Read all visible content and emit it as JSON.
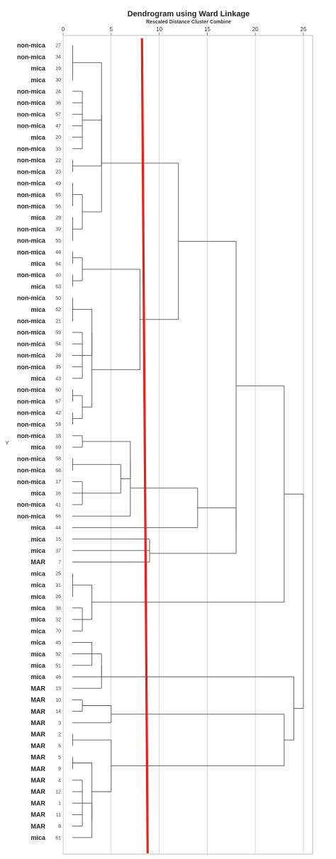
{
  "chart_data": {
    "type": "dendrogram",
    "title": "Dendrogram using Ward Linkage",
    "subtitle": "Rescaled Distance Cluster Combine",
    "ylabel": "Y",
    "xlim": [
      0,
      25
    ],
    "x_ticks": [
      0,
      5,
      10,
      15,
      20,
      25
    ],
    "cut_line": {
      "value": 8.5,
      "color": "#e8211d"
    },
    "leaves": [
      {
        "label": "non-mica",
        "id": "27"
      },
      {
        "label": "non-mica",
        "id": "34"
      },
      {
        "label": "mica",
        "id": "19"
      },
      {
        "label": "mica",
        "id": "30"
      },
      {
        "label": "non-mica",
        "id": "24"
      },
      {
        "label": "non-mica",
        "id": "36"
      },
      {
        "label": "non-mica",
        "id": "57"
      },
      {
        "label": "non-mica",
        "id": "47"
      },
      {
        "label": "mica",
        "id": "20"
      },
      {
        "label": "non-mica",
        "id": "33"
      },
      {
        "label": "non-mica",
        "id": "22"
      },
      {
        "label": "non-mica",
        "id": "23"
      },
      {
        "label": "non-mica",
        "id": "49"
      },
      {
        "label": "non-mica",
        "id": "65"
      },
      {
        "label": "non-mica",
        "id": "56"
      },
      {
        "label": "mica",
        "id": "29"
      },
      {
        "label": "non-mica",
        "id": "39"
      },
      {
        "label": "non-mica",
        "id": "55"
      },
      {
        "label": "non-mica",
        "id": "48"
      },
      {
        "label": "mica",
        "id": "64"
      },
      {
        "label": "non-mica",
        "id": "40"
      },
      {
        "label": "mica",
        "id": "63"
      },
      {
        "label": "non-mica",
        "id": "50"
      },
      {
        "label": "mica",
        "id": "62"
      },
      {
        "label": "non-mica",
        "id": "21"
      },
      {
        "label": "non-mica",
        "id": "59"
      },
      {
        "label": "non-mica",
        "id": "54"
      },
      {
        "label": "non-mica",
        "id": "28"
      },
      {
        "label": "non-mica",
        "id": "35"
      },
      {
        "label": "mica",
        "id": "43"
      },
      {
        "label": "non-mica",
        "id": "60"
      },
      {
        "label": "non-mica",
        "id": "67"
      },
      {
        "label": "non-mica",
        "id": "42"
      },
      {
        "label": "non-mica",
        "id": "53"
      },
      {
        "label": "non-mica",
        "id": "18"
      },
      {
        "label": "mica",
        "id": "69"
      },
      {
        "label": "non-mica",
        "id": "58"
      },
      {
        "label": "non-mica",
        "id": "68"
      },
      {
        "label": "non-mica",
        "id": "17"
      },
      {
        "label": "mica",
        "id": "16"
      },
      {
        "label": "non-mica",
        "id": "41"
      },
      {
        "label": "non-mica",
        "id": "66"
      },
      {
        "label": "mica",
        "id": "44"
      },
      {
        "label": "mica",
        "id": "15"
      },
      {
        "label": "mica",
        "id": "37"
      },
      {
        "label": "MAR",
        "id": "7"
      },
      {
        "label": "mica",
        "id": "25"
      },
      {
        "label": "mica",
        "id": "31"
      },
      {
        "label": "mica",
        "id": "26"
      },
      {
        "label": "mica",
        "id": "38"
      },
      {
        "label": "mica",
        "id": "32"
      },
      {
        "label": "mica",
        "id": "70"
      },
      {
        "label": "mica",
        "id": "45"
      },
      {
        "label": "mica",
        "id": "52"
      },
      {
        "label": "mica",
        "id": "51"
      },
      {
        "label": "mica",
        "id": "46"
      },
      {
        "label": "MAR",
        "id": "13"
      },
      {
        "label": "MAR",
        "id": "10"
      },
      {
        "label": "MAR",
        "id": "14"
      },
      {
        "label": "MAR",
        "id": "3"
      },
      {
        "label": "MAR",
        "id": "2"
      },
      {
        "label": "MAR",
        "id": "6"
      },
      {
        "label": "MAR",
        "id": "5"
      },
      {
        "label": "MAR",
        "id": "9"
      },
      {
        "label": "MAR",
        "id": "4"
      },
      {
        "label": "MAR",
        "id": "12"
      },
      {
        "label": "MAR",
        "id": "1"
      },
      {
        "label": "MAR",
        "id": "11"
      },
      {
        "label": "MAR",
        "id": "8"
      },
      {
        "label": "mica",
        "id": "61"
      }
    ],
    "merges": [
      {
        "name": "c0",
        "children": [
          0,
          1,
          2,
          3
        ],
        "height": 1
      },
      {
        "name": "c1",
        "children": [
          4,
          5,
          6,
          7,
          8,
          9
        ],
        "height": 2
      },
      {
        "name": "c2",
        "children": [
          10,
          11
        ],
        "height": 1
      },
      {
        "name": "c3",
        "children": [
          "c0",
          "c1",
          "c2"
        ],
        "height": 4
      },
      {
        "name": "c4",
        "children": [
          12,
          13,
          14
        ],
        "height": 1
      },
      {
        "name": "c5",
        "children": [
          15,
          16,
          17
        ],
        "height": 1
      },
      {
        "name": "c6",
        "children": [
          "c4",
          "c5"
        ],
        "height": 2
      },
      {
        "name": "c7",
        "children": [
          "c6"
        ],
        "height": 4
      },
      {
        "name": "c8",
        "children": [
          "c3",
          "c7"
        ],
        "height": 4
      },
      {
        "name": "c9",
        "children": [
          18,
          19
        ],
        "height": 1
      },
      {
        "name": "c10",
        "children": [
          20,
          21
        ],
        "height": 1
      },
      {
        "name": "c11",
        "children": [
          "c9",
          "c10"
        ],
        "height": 2
      },
      {
        "name": "c12",
        "children": [
          22,
          23,
          24
        ],
        "height": 1
      },
      {
        "name": "c13",
        "children": [
          25,
          26,
          27,
          28,
          29
        ],
        "height": 2
      },
      {
        "name": "c14",
        "children": [
          "c12",
          "c13"
        ],
        "height": 3
      },
      {
        "name": "c15",
        "children": [
          30,
          31
        ],
        "height": 1
      },
      {
        "name": "c16",
        "children": [
          32,
          33
        ],
        "height": 1
      },
      {
        "name": "c17",
        "children": [
          "c15",
          "c16"
        ],
        "height": 2
      },
      {
        "name": "c18",
        "children": [
          "c14",
          "c17"
        ],
        "height": 3
      },
      {
        "name": "c19",
        "children": [
          "c11",
          "c18"
        ],
        "height": 8
      },
      {
        "name": "c20",
        "children": [
          "c8",
          "c19"
        ],
        "height": 12
      },
      {
        "name": "c21",
        "children": [
          34,
          35
        ],
        "height": 2
      },
      {
        "name": "c22",
        "children": [
          36,
          37
        ],
        "height": 1
      },
      {
        "name": "c23",
        "children": [
          38,
          39,
          40
        ],
        "height": 2
      },
      {
        "name": "c24",
        "children": [
          "c22",
          "c23"
        ],
        "height": 6
      },
      {
        "name": "c25",
        "children": [
          "c21",
          "c24"
        ],
        "height": 7
      },
      {
        "name": "c26",
        "children": [
          "c25",
          41
        ],
        "height": 7
      },
      {
        "name": "c27",
        "children": [
          "c26",
          42
        ],
        "height": 14
      },
      {
        "name": "c28",
        "children": [
          43,
          44
        ],
        "height": 9
      },
      {
        "name": "c29",
        "children": [
          "c28",
          45
        ],
        "height": 9
      },
      {
        "name": "c30",
        "children": [
          "c27",
          "c29"
        ],
        "height": 18
      },
      {
        "name": "c31",
        "children": [
          "c20",
          "c30"
        ],
        "height": 18
      },
      {
        "name": "c32",
        "children": [
          46,
          47,
          48
        ],
        "height": 1
      },
      {
        "name": "c33",
        "children": [
          49,
          50,
          51
        ],
        "height": 2
      },
      {
        "name": "c34",
        "children": [
          "c32",
          "c33"
        ],
        "height": 3
      },
      {
        "name": "c35",
        "children": [
          "c31",
          "c34"
        ],
        "height": 23
      },
      {
        "name": "c36",
        "children": [
          52,
          53,
          54
        ],
        "height": 3
      },
      {
        "name": "c37",
        "children": [
          "c36",
          55
        ],
        "height": 4
      },
      {
        "name": "c38",
        "children": [
          "c37",
          56
        ],
        "height": 4
      },
      {
        "name": "c39",
        "children": [
          57,
          58
        ],
        "height": 2
      },
      {
        "name": "c40",
        "children": [
          "c39",
          59
        ],
        "height": 5
      },
      {
        "name": "c41",
        "children": [
          60,
          61
        ],
        "height": 1
      },
      {
        "name": "c42",
        "children": [
          62,
          63
        ],
        "height": 1
      },
      {
        "name": "c43",
        "children": [
          64,
          65,
          66,
          67,
          68
        ],
        "height": 2
      },
      {
        "name": "c44",
        "children": [
          "c43",
          69
        ],
        "height": 3
      },
      {
        "name": "c45",
        "children": [
          "c42",
          "c44"
        ],
        "height": 3
      },
      {
        "name": "c46",
        "children": [
          "c41",
          "c45"
        ],
        "height": 5
      },
      {
        "name": "c47",
        "children": [
          "c40",
          "c46"
        ],
        "height": 23
      },
      {
        "name": "c48",
        "children": [
          "c38",
          "c47"
        ],
        "height": 24
      },
      {
        "name": "c49",
        "children": [
          "c35",
          "c48"
        ],
        "height": 25
      }
    ]
  }
}
